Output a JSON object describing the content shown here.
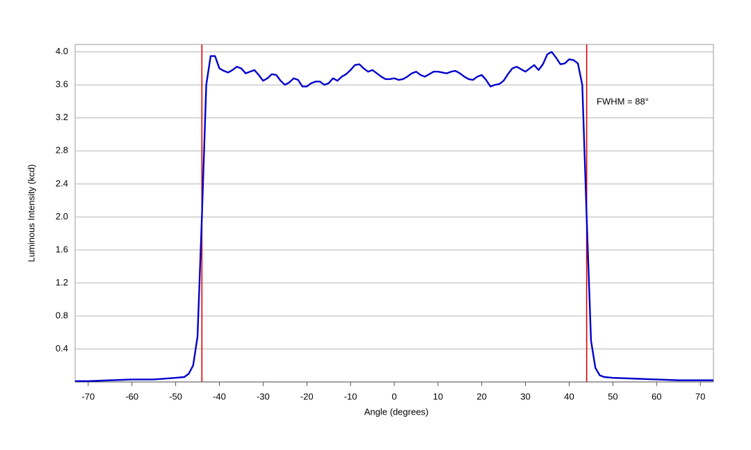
{
  "chart_data": {
    "type": "line",
    "x_label": "Angle (degrees)",
    "y_label": "Luminous Intensity (kcd)",
    "annotation": "FWHM = 88°",
    "xlim": [
      -73,
      73
    ],
    "ylim": [
      0,
      4.09
    ],
    "xticks": [
      -70,
      -60,
      -50,
      -40,
      -30,
      -20,
      -10,
      0,
      10,
      20,
      30,
      40,
      50,
      60,
      70
    ],
    "yticks": [
      0.4,
      0.8,
      1.2,
      1.6,
      {
        "value": 2,
        "label": "2.0"
      },
      2.4,
      2.8,
      3.2,
      3.6,
      {
        "value": 4,
        "label": "4.0"
      }
    ],
    "grid": true,
    "vlines": [
      -44,
      44
    ],
    "vline_color": "#e00000",
    "x": [
      -73,
      -70,
      -65,
      -60,
      -55,
      -50,
      -48,
      -47,
      -46,
      -45,
      -44,
      -43,
      -42,
      -41,
      -40,
      -39,
      -38,
      -37,
      -36,
      -35,
      -34,
      -33,
      -32,
      -31,
      -30,
      -29,
      -28,
      -27,
      -26,
      -25,
      -24,
      -23,
      -22,
      -21,
      -20,
      -19,
      -18,
      -17,
      -16,
      -15,
      -14,
      -13,
      -12,
      -11,
      -10,
      -9,
      -8,
      -7,
      -6,
      -5,
      -4,
      -3,
      -2,
      -1,
      0,
      1,
      2,
      3,
      4,
      5,
      6,
      7,
      8,
      9,
      10,
      11,
      12,
      13,
      14,
      15,
      16,
      17,
      18,
      19,
      20,
      21,
      22,
      23,
      24,
      25,
      26,
      27,
      28,
      29,
      30,
      31,
      32,
      33,
      34,
      35,
      36,
      37,
      38,
      39,
      40,
      41,
      42,
      43,
      44,
      45,
      46,
      47,
      48,
      50,
      55,
      60,
      65,
      70,
      73
    ],
    "series": [
      {
        "color": "#0000cc",
        "values": [
          0.01,
          0.01,
          0.02,
          0.03,
          0.03,
          0.05,
          0.06,
          0.1,
          0.2,
          0.55,
          2.0,
          3.6,
          3.95,
          3.95,
          3.8,
          3.77,
          3.75,
          3.78,
          3.82,
          3.8,
          3.74,
          3.76,
          3.78,
          3.72,
          3.65,
          3.68,
          3.73,
          3.72,
          3.65,
          3.6,
          3.63,
          3.68,
          3.66,
          3.58,
          3.58,
          3.62,
          3.64,
          3.64,
          3.6,
          3.62,
          3.68,
          3.65,
          3.7,
          3.73,
          3.78,
          3.84,
          3.85,
          3.8,
          3.76,
          3.78,
          3.74,
          3.7,
          3.67,
          3.67,
          3.68,
          3.66,
          3.67,
          3.7,
          3.74,
          3.76,
          3.72,
          3.7,
          3.73,
          3.76,
          3.76,
          3.75,
          3.74,
          3.76,
          3.77,
          3.74,
          3.7,
          3.67,
          3.66,
          3.7,
          3.72,
          3.66,
          3.58,
          3.6,
          3.61,
          3.65,
          3.73,
          3.8,
          3.82,
          3.79,
          3.76,
          3.8,
          3.84,
          3.78,
          3.85,
          3.97,
          4.0,
          3.93,
          3.85,
          3.86,
          3.91,
          3.9,
          3.86,
          3.6,
          2.0,
          0.5,
          0.17,
          0.08,
          0.06,
          0.05,
          0.04,
          0.03,
          0.02,
          0.02,
          0.02
        ]
      }
    ]
  }
}
